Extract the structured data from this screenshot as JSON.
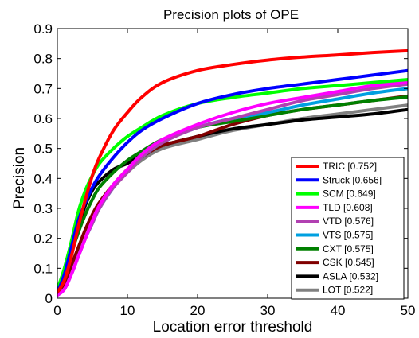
{
  "chart_data": {
    "type": "line",
    "title": "Precision plots of OPE",
    "xlabel": "Location error threshold",
    "ylabel": "Precision",
    "xlim": [
      0,
      50
    ],
    "ylim": [
      0,
      0.9
    ],
    "xticks": [
      0,
      10,
      20,
      30,
      40,
      50
    ],
    "yticks": [
      0,
      0.1,
      0.2,
      0.3,
      0.4,
      0.5,
      0.6,
      0.7,
      0.8,
      0.9
    ],
    "grid": false,
    "legend_position": "bottom-right",
    "x": [
      0,
      1,
      2,
      3,
      4,
      5,
      6,
      8,
      10,
      12,
      15,
      20,
      25,
      30,
      35,
      40,
      45,
      50
    ],
    "series": [
      {
        "name": "TRIC [0.752]",
        "color": "#ff0000",
        "values": [
          0.02,
          0.06,
          0.14,
          0.24,
          0.33,
          0.41,
          0.47,
          0.56,
          0.62,
          0.67,
          0.72,
          0.76,
          0.78,
          0.795,
          0.805,
          0.812,
          0.82,
          0.826
        ]
      },
      {
        "name": "Struck [0.656]",
        "color": "#0000ff",
        "values": [
          0.02,
          0.08,
          0.17,
          0.26,
          0.32,
          0.37,
          0.41,
          0.47,
          0.52,
          0.56,
          0.6,
          0.65,
          0.68,
          0.7,
          0.715,
          0.73,
          0.745,
          0.76
        ]
      },
      {
        "name": "SCM [0.649]",
        "color": "#00ff00",
        "values": [
          0.03,
          0.1,
          0.19,
          0.29,
          0.36,
          0.41,
          0.45,
          0.5,
          0.54,
          0.57,
          0.61,
          0.65,
          0.67,
          0.685,
          0.7,
          0.71,
          0.72,
          0.73
        ]
      },
      {
        "name": "TLD [0.608]",
        "color": "#ff00ff",
        "values": [
          0.01,
          0.03,
          0.08,
          0.14,
          0.2,
          0.26,
          0.31,
          0.38,
          0.43,
          0.48,
          0.53,
          0.58,
          0.62,
          0.65,
          0.67,
          0.69,
          0.71,
          0.72
        ]
      },
      {
        "name": "VTD [0.576]",
        "color": "#b140b1",
        "values": [
          0.01,
          0.03,
          0.08,
          0.14,
          0.2,
          0.25,
          0.3,
          0.37,
          0.42,
          0.47,
          0.52,
          0.57,
          0.6,
          0.63,
          0.66,
          0.68,
          0.7,
          0.715
        ]
      },
      {
        "name": "VTS [0.575]",
        "color": "#00a0e0",
        "values": [
          0.01,
          0.03,
          0.08,
          0.14,
          0.2,
          0.25,
          0.3,
          0.37,
          0.43,
          0.47,
          0.52,
          0.57,
          0.6,
          0.62,
          0.645,
          0.665,
          0.685,
          0.7
        ]
      },
      {
        "name": "CXT [0.575]",
        "color": "#008000",
        "values": [
          0.02,
          0.07,
          0.15,
          0.22,
          0.28,
          0.33,
          0.37,
          0.42,
          0.46,
          0.49,
          0.53,
          0.57,
          0.59,
          0.61,
          0.63,
          0.645,
          0.66,
          0.672
        ]
      },
      {
        "name": "CSK [0.545]",
        "color": "#800000",
        "values": [
          0.02,
          0.05,
          0.11,
          0.17,
          0.23,
          0.28,
          0.32,
          0.38,
          0.43,
          0.47,
          0.51,
          0.54,
          0.58,
          0.61,
          0.63,
          0.645,
          0.66,
          0.675
        ]
      },
      {
        "name": "ASLA [0.532]",
        "color": "#000000",
        "values": [
          0.03,
          0.09,
          0.16,
          0.24,
          0.31,
          0.36,
          0.39,
          0.43,
          0.45,
          0.48,
          0.51,
          0.54,
          0.565,
          0.58,
          0.595,
          0.605,
          0.615,
          0.63
        ]
      },
      {
        "name": "LOT [0.522]",
        "color": "#808080",
        "values": [
          0.01,
          0.03,
          0.08,
          0.14,
          0.2,
          0.26,
          0.31,
          0.37,
          0.42,
          0.46,
          0.5,
          0.53,
          0.56,
          0.58,
          0.6,
          0.615,
          0.63,
          0.645
        ]
      }
    ]
  }
}
